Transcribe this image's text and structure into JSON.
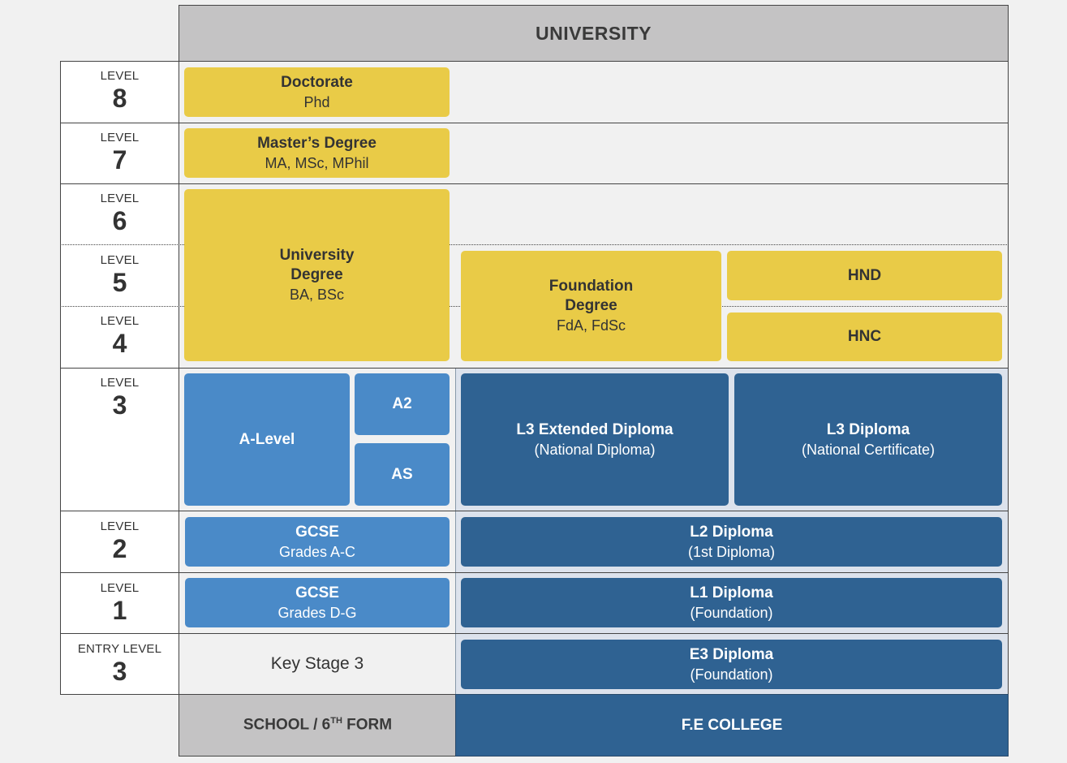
{
  "header": {
    "title": "UNIVERSITY"
  },
  "levels": [
    {
      "word": "LEVEL",
      "num": "8"
    },
    {
      "word": "LEVEL",
      "num": "7"
    },
    {
      "word": "LEVEL",
      "num": "6"
    },
    {
      "word": "LEVEL",
      "num": "5"
    },
    {
      "word": "LEVEL",
      "num": "4"
    },
    {
      "word": "LEVEL",
      "num": "3"
    },
    {
      "word": "LEVEL",
      "num": "2"
    },
    {
      "word": "LEVEL",
      "num": "1"
    },
    {
      "word": "ENTRY LEVEL",
      "num": "3"
    }
  ],
  "boxes": {
    "doctorate": {
      "title": "Doctorate",
      "sub": "Phd"
    },
    "masters": {
      "title": "Master’s Degree",
      "sub": "MA, MSc, MPhil"
    },
    "university_degree": {
      "title_1": "University",
      "title_2": "Degree",
      "sub": "BA, BSc"
    },
    "foundation_degree": {
      "title_1": "Foundation",
      "title_2": "Degree",
      "sub": "FdA, FdSc"
    },
    "hnd": {
      "title": "HND"
    },
    "hnc": {
      "title": "HNC"
    },
    "a_level": {
      "title": "A-Level"
    },
    "a2": {
      "title": "A2"
    },
    "as": {
      "title": "AS"
    },
    "l3_extended": {
      "title": "L3 Extended Diploma",
      "sub": "(National Diploma)"
    },
    "l3_diploma": {
      "title": "L3 Diploma",
      "sub": "(National Certificate)"
    },
    "gcse_ac": {
      "title": "GCSE",
      "sub": "Grades A-C"
    },
    "l2_diploma": {
      "title": "L2 Diploma",
      "sub": "(1st Diploma)"
    },
    "gcse_dg": {
      "title": "GCSE",
      "sub": "Grades D-G"
    },
    "l1_diploma": {
      "title": "L1 Diploma",
      "sub": "(Foundation)"
    },
    "key_stage": {
      "title": "Key Stage 3"
    },
    "e3_diploma": {
      "title": "E3 Diploma",
      "sub": "(Foundation)"
    }
  },
  "footer": {
    "school_main": "SCHOOL / 6",
    "school_sup": "TH",
    "school_tail": " FORM",
    "college": "F.E COLLEGE"
  },
  "colors": {
    "yellow": "#e9cb47",
    "light_blue": "#4a8ac8",
    "dark_blue": "#2f6292",
    "grey_header": "#c4c3c4",
    "college_panel": "#dce2ec"
  }
}
